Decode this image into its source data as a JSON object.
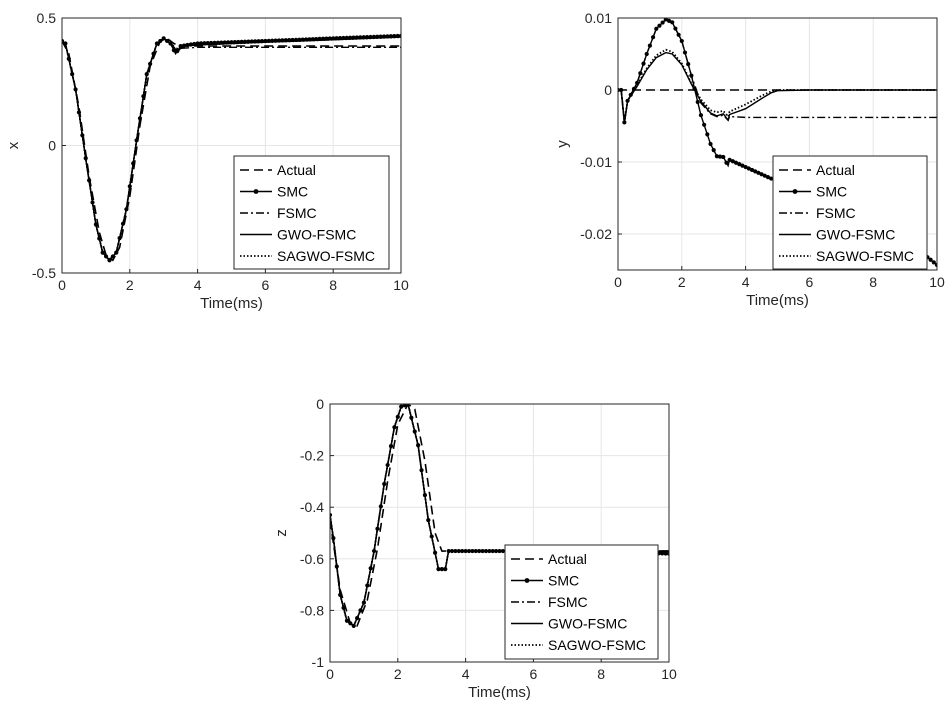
{
  "chart_data": [
    {
      "type": "line",
      "xlabel": "Time(ms)",
      "ylabel": "x",
      "xlim": [
        0,
        10
      ],
      "ylim": [
        -0.5,
        0.5
      ],
      "xticks": [
        "0",
        "2",
        "4",
        "6",
        "8",
        "10"
      ],
      "yticks": [
        "-0.5",
        "0",
        "0.5"
      ],
      "grid": true,
      "legend": "lower-right",
      "series": [
        {
          "name": "Actual",
          "style": "dashed",
          "x": [
            0,
            0.2,
            0.5,
            0.8,
            1.1,
            1.3,
            1.5,
            1.7,
            2.0,
            2.3,
            2.6,
            2.9,
            3.1,
            3.3,
            3.5,
            4,
            5,
            6,
            7,
            8,
            9,
            10
          ],
          "y": [
            0.41,
            0.36,
            0.15,
            -0.12,
            -0.34,
            -0.43,
            -0.45,
            -0.4,
            -0.2,
            0.08,
            0.31,
            0.41,
            0.42,
            0.4,
            0.39,
            0.39,
            0.39,
            0.39,
            0.39,
            0.39,
            0.39,
            0.39
          ]
        },
        {
          "name": "SMC",
          "style": "marker",
          "x": [
            0,
            0.1,
            0.4,
            0.7,
            1.0,
            1.2,
            1.4,
            1.6,
            1.9,
            2.2,
            2.5,
            2.8,
            3.0,
            3.2,
            3.35,
            3.5,
            4,
            5,
            6,
            7,
            8,
            9,
            10
          ],
          "y": [
            0.41,
            0.4,
            0.22,
            -0.05,
            -0.31,
            -0.42,
            -0.45,
            -0.42,
            -0.25,
            0.02,
            0.28,
            0.4,
            0.42,
            0.4,
            0.36,
            0.39,
            0.4,
            0.405,
            0.41,
            0.415,
            0.42,
            0.425,
            0.43
          ]
        },
        {
          "name": "FSMC",
          "style": "dashdot",
          "x": [
            0,
            0.1,
            0.4,
            0.7,
            1.0,
            1.2,
            1.4,
            1.6,
            1.9,
            2.2,
            2.5,
            2.8,
            3.0,
            3.2,
            3.4,
            4,
            5,
            6,
            7,
            8,
            9,
            10
          ],
          "y": [
            0.41,
            0.4,
            0.22,
            -0.05,
            -0.31,
            -0.42,
            -0.45,
            -0.42,
            -0.25,
            0.02,
            0.28,
            0.4,
            0.42,
            0.4,
            0.38,
            0.385,
            0.385,
            0.385,
            0.385,
            0.385,
            0.385,
            0.385
          ]
        },
        {
          "name": "GWO-FSMC",
          "style": "solid",
          "x": [
            0,
            0.1,
            0.4,
            0.7,
            1.0,
            1.2,
            1.4,
            1.6,
            1.9,
            2.2,
            2.5,
            2.8,
            3.0,
            3.2,
            3.4,
            3.6,
            4,
            5,
            6,
            7,
            8,
            9,
            10
          ],
          "y": [
            0.41,
            0.4,
            0.22,
            -0.05,
            -0.31,
            -0.42,
            -0.45,
            -0.42,
            -0.25,
            0.02,
            0.28,
            0.4,
            0.42,
            0.4,
            0.37,
            0.39,
            0.395,
            0.4,
            0.405,
            0.41,
            0.415,
            0.42,
            0.425
          ]
        },
        {
          "name": "SAGWO-FSMC",
          "style": "dotted",
          "x": [
            0,
            0.1,
            0.4,
            0.7,
            1.0,
            1.2,
            1.4,
            1.6,
            1.9,
            2.2,
            2.5,
            2.8,
            3.0,
            3.2,
            3.4,
            3.6,
            4,
            5,
            6,
            7,
            8,
            9,
            10
          ],
          "y": [
            0.41,
            0.4,
            0.22,
            -0.05,
            -0.31,
            -0.42,
            -0.45,
            -0.42,
            -0.25,
            0.02,
            0.28,
            0.4,
            0.42,
            0.4,
            0.37,
            0.39,
            0.395,
            0.4,
            0.405,
            0.41,
            0.415,
            0.42,
            0.425
          ]
        }
      ]
    },
    {
      "type": "line",
      "xlabel": "Time(ms)",
      "ylabel": "y",
      "xlim": [
        0,
        10
      ],
      "ylim": [
        -0.025,
        0.01
      ],
      "xticks": [
        "0",
        "2",
        "4",
        "6",
        "8",
        "10"
      ],
      "yticks": [
        "-0.02",
        "-0.01",
        "0",
        "0.01"
      ],
      "grid": true,
      "legend": "lower-right",
      "series": [
        {
          "name": "Actual",
          "style": "dashed",
          "x": [
            0,
            10
          ],
          "y": [
            0,
            0
          ]
        },
        {
          "name": "SMC",
          "style": "marker",
          "x": [
            0,
            0.1,
            0.2,
            0.3,
            0.6,
            0.9,
            1.2,
            1.5,
            1.7,
            2.0,
            2.3,
            2.6,
            2.9,
            3.1,
            3.3,
            3.45,
            3.5,
            4,
            5,
            6,
            7,
            8,
            9,
            10
          ],
          "y": [
            0,
            0,
            -0.0045,
            -0.0015,
            0.001,
            0.005,
            0.0085,
            0.0098,
            0.0094,
            0.0068,
            0.002,
            -0.0035,
            -0.0075,
            -0.0092,
            -0.0093,
            -0.0105,
            -0.0097,
            -0.0107,
            -0.0127,
            -0.0147,
            -0.0167,
            -0.0187,
            -0.0207,
            -0.0243
          ]
        },
        {
          "name": "FSMC",
          "style": "dashdot",
          "x": [
            0,
            0.1,
            0.2,
            0.3,
            0.6,
            0.9,
            1.2,
            1.5,
            1.7,
            2.0,
            2.3,
            2.6,
            2.9,
            3.1,
            3.3,
            3.45,
            3.5,
            4,
            5,
            6,
            7,
            8,
            9,
            10
          ],
          "y": [
            0,
            0,
            -0.0045,
            -0.0015,
            0.001,
            0.005,
            0.0085,
            0.0098,
            0.0094,
            0.0068,
            0.002,
            -0.0018,
            -0.0033,
            -0.0037,
            -0.0035,
            -0.0042,
            -0.0037,
            -0.0038,
            -0.0038,
            -0.0038,
            -0.0038,
            -0.0038,
            -0.0038,
            -0.0038
          ]
        },
        {
          "name": "GWO-FSMC",
          "style": "solid",
          "x": [
            0,
            0.1,
            0.2,
            0.3,
            0.6,
            0.9,
            1.2,
            1.5,
            1.7,
            2.0,
            2.3,
            2.6,
            2.9,
            3.1,
            3.3,
            3.45,
            3.5,
            4,
            4.5,
            4.8,
            5,
            6,
            7,
            8,
            9,
            10
          ],
          "y": [
            0,
            0,
            -0.0045,
            -0.0015,
            0.0005,
            0.0028,
            0.0045,
            0.0052,
            0.005,
            0.0035,
            0.0008,
            -0.0016,
            -0.0032,
            -0.0036,
            -0.0033,
            -0.0042,
            -0.0034,
            -0.0026,
            -0.0012,
            -0.0004,
            -0.0001,
            0,
            0,
            0,
            0,
            0
          ]
        },
        {
          "name": "SAGWO-FSMC",
          "style": "dotted",
          "x": [
            0,
            0.1,
            0.2,
            0.3,
            0.6,
            0.9,
            1.2,
            1.5,
            1.7,
            2.0,
            2.3,
            2.6,
            2.9,
            3.1,
            3.3,
            3.45,
            3.5,
            4,
            4.5,
            4.8,
            5,
            6,
            7,
            8,
            9,
            10
          ],
          "y": [
            0,
            0,
            -0.0045,
            -0.0015,
            0.0007,
            0.003,
            0.0048,
            0.0056,
            0.0053,
            0.0037,
            0.0009,
            -0.0013,
            -0.0028,
            -0.0031,
            -0.0029,
            -0.0037,
            -0.003,
            -0.002,
            -0.0008,
            -0.0002,
            0,
            0,
            0,
            0,
            0,
            0
          ]
        }
      ]
    },
    {
      "type": "line",
      "xlabel": "Time(ms)",
      "ylabel": "z",
      "xlim": [
        0,
        10
      ],
      "ylim": [
        -1,
        0
      ],
      "xticks": [
        "0",
        "2",
        "4",
        "6",
        "8",
        "10"
      ],
      "yticks": [
        "-1",
        "-0.8",
        "-0.6",
        "-0.4",
        "-0.2",
        "0"
      ],
      "grid": true,
      "legend": "lower-right",
      "series": [
        {
          "name": "Actual",
          "style": "dashed",
          "x": [
            0,
            0.3,
            0.6,
            0.8,
            1.1,
            1.4,
            1.7,
            2.0,
            2.3,
            2.5,
            2.8,
            3.1,
            3.3,
            3.5,
            4,
            5,
            6,
            7,
            8,
            9,
            10
          ],
          "y": [
            -0.45,
            -0.72,
            -0.85,
            -0.86,
            -0.76,
            -0.56,
            -0.3,
            -0.08,
            0,
            -0.02,
            -0.22,
            -0.5,
            -0.57,
            -0.57,
            -0.57,
            -0.57,
            -0.57,
            -0.57,
            -0.57,
            -0.57,
            -0.57
          ]
        },
        {
          "name": "SMC",
          "style": "marker",
          "x": [
            0,
            0.1,
            0.3,
            0.5,
            0.7,
            1.0,
            1.3,
            1.6,
            1.9,
            2.1,
            2.3,
            2.6,
            2.9,
            3.2,
            3.3,
            3.4,
            3.5,
            3.6,
            4,
            5,
            6,
            7,
            8,
            9,
            10
          ],
          "y": [
            -0.43,
            -0.52,
            -0.74,
            -0.84,
            -0.86,
            -0.77,
            -0.57,
            -0.31,
            -0.09,
            -0.01,
            0,
            -0.16,
            -0.45,
            -0.64,
            -0.64,
            -0.64,
            -0.57,
            -0.57,
            -0.57,
            -0.57,
            -0.57,
            -0.57,
            -0.575,
            -0.575,
            -0.58
          ]
        },
        {
          "name": "FSMC",
          "style": "dashdot",
          "x": [
            0,
            0.1,
            0.3,
            0.5,
            0.7,
            1.0,
            1.3,
            1.6,
            1.9,
            2.1,
            2.3,
            2.6,
            2.9,
            3.2,
            3.3,
            3.4,
            3.5,
            3.6,
            4,
            5,
            6,
            7,
            8,
            9,
            10
          ],
          "y": [
            -0.43,
            -0.52,
            -0.74,
            -0.84,
            -0.86,
            -0.77,
            -0.57,
            -0.31,
            -0.09,
            -0.01,
            0,
            -0.16,
            -0.45,
            -0.64,
            -0.64,
            -0.64,
            -0.57,
            -0.57,
            -0.57,
            -0.57,
            -0.57,
            -0.57,
            -0.57,
            -0.57,
            -0.57
          ]
        },
        {
          "name": "GWO-FSMC",
          "style": "solid",
          "x": [
            0,
            0.1,
            0.3,
            0.5,
            0.7,
            1.0,
            1.3,
            1.6,
            1.9,
            2.1,
            2.3,
            2.6,
            2.9,
            3.2,
            3.3,
            3.4,
            3.5,
            3.6,
            4,
            5,
            6,
            7,
            8,
            9,
            10
          ],
          "y": [
            -0.43,
            -0.52,
            -0.74,
            -0.84,
            -0.86,
            -0.77,
            -0.57,
            -0.31,
            -0.09,
            -0.01,
            0,
            -0.16,
            -0.45,
            -0.64,
            -0.64,
            -0.64,
            -0.57,
            -0.57,
            -0.57,
            -0.57,
            -0.57,
            -0.57,
            -0.57,
            -0.57,
            -0.57
          ]
        },
        {
          "name": "SAGWO-FSMC",
          "style": "dotted",
          "x": [
            0,
            0.1,
            0.3,
            0.5,
            0.7,
            1.0,
            1.3,
            1.6,
            1.9,
            2.1,
            2.3,
            2.6,
            2.9,
            3.2,
            3.3,
            3.4,
            3.5,
            3.6,
            4,
            5,
            6,
            7,
            8,
            9,
            10
          ],
          "y": [
            -0.43,
            -0.52,
            -0.74,
            -0.84,
            -0.86,
            -0.77,
            -0.57,
            -0.31,
            -0.09,
            -0.01,
            0,
            -0.16,
            -0.45,
            -0.64,
            -0.64,
            -0.64,
            -0.57,
            -0.57,
            -0.57,
            -0.57,
            -0.57,
            -0.57,
            -0.57,
            -0.57,
            -0.57
          ]
        }
      ]
    }
  ]
}
